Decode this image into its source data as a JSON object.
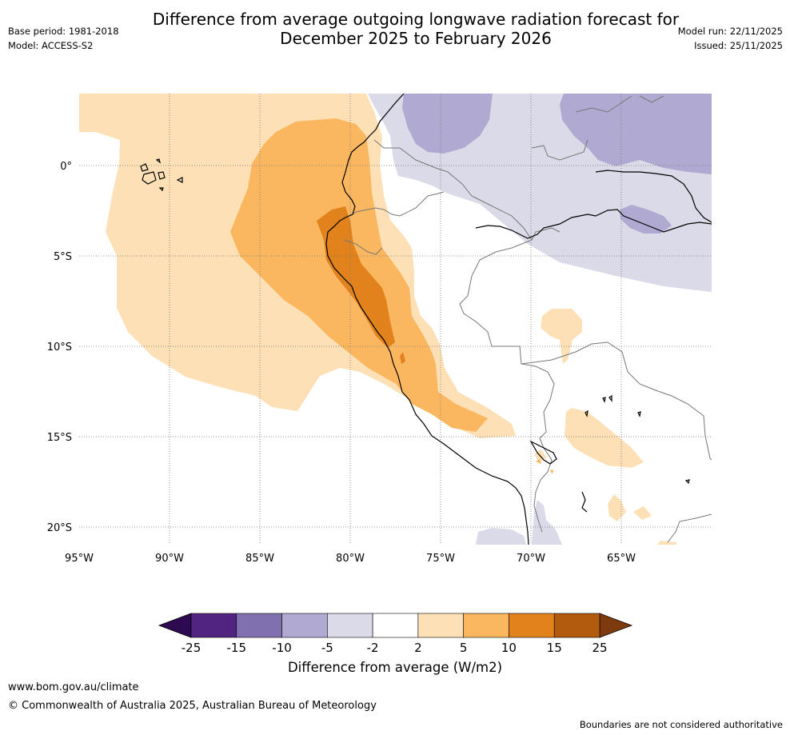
{
  "title": {
    "line1": "Difference from average outgoing longwave radiation forecast for",
    "line2": "December 2025 to February 2026"
  },
  "meta_left": {
    "base_period": "Base period: 1981-2018",
    "model": "Model: ACCESS-S2"
  },
  "meta_right": {
    "model_run": "Model run: 22/11/2025",
    "issued": "Issued: 25/11/2025"
  },
  "map": {
    "lon_ticks": [
      "95°W",
      "90°W",
      "85°W",
      "80°W",
      "75°W",
      "70°W",
      "65°W"
    ],
    "lat_ticks": [
      "0°",
      "5°S",
      "10°S",
      "15°S",
      "20°S"
    ],
    "lon_range": [
      -95,
      -60
    ],
    "lat_range": [
      -21,
      4
    ]
  },
  "colorbar": {
    "tick_labels": [
      "-25",
      "-15",
      "-10",
      "-5",
      "-2",
      "2",
      "5",
      "10",
      "15",
      "25"
    ],
    "colors": [
      "#522481",
      "#8170b0",
      "#b0a9d2",
      "#dadae9",
      "#ffffff",
      "#fde0b5",
      "#fbb760",
      "#e1821c",
      "#b25a0d"
    ],
    "under_color": "#2e0a52",
    "over_color": "#7d3a0c",
    "label": "Difference from average (W/m2)"
  },
  "footer": {
    "website": "www.bom.gov.au/climate",
    "copyright": "© Commonwealth of Australia 2025, Australian Bureau of Meteorology",
    "disclaimer": "Boundaries are not considered authoritative"
  }
}
